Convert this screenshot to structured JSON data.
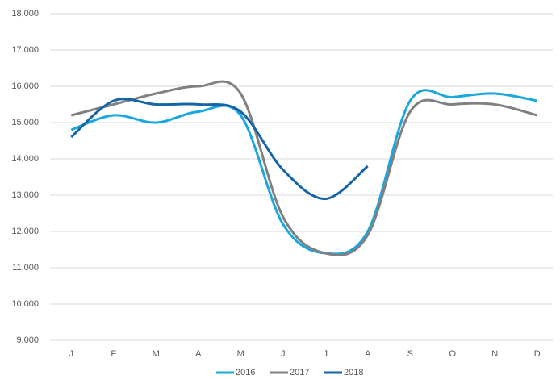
{
  "chart_data": {
    "type": "line",
    "categories": [
      "J",
      "F",
      "M",
      "A",
      "M",
      "J",
      "J",
      "A",
      "S",
      "O",
      "N",
      "D"
    ],
    "series": [
      {
        "name": "2016",
        "color": "#1aa7e0",
        "values": [
          14800,
          15200,
          15000,
          15300,
          15200,
          12200,
          11400,
          12000,
          15600,
          15700,
          15800,
          15600
        ]
      },
      {
        "name": "2017",
        "color": "#808080",
        "values": [
          15200,
          15500,
          15800,
          16000,
          15800,
          12400,
          11400,
          11900,
          15300,
          15500,
          15500,
          15200
        ]
      },
      {
        "name": "2018",
        "color": "#1565a8",
        "values": [
          14600,
          15600,
          15500,
          15500,
          15300,
          13700,
          12900,
          13800,
          null,
          null,
          null,
          null
        ]
      }
    ],
    "ylim": [
      9000,
      18000
    ],
    "yticks": [
      {
        "value": 9000,
        "label": "9,000"
      },
      {
        "value": 10000,
        "label": "10,000"
      },
      {
        "value": 11000,
        "label": "11,000"
      },
      {
        "value": 12000,
        "label": "12,000"
      },
      {
        "value": 13000,
        "label": "13,000"
      },
      {
        "value": 14000,
        "label": "14,000"
      },
      {
        "value": 15000,
        "label": "15,000"
      },
      {
        "value": 16000,
        "label": "16,000"
      },
      {
        "value": 17000,
        "label": "17,000"
      },
      {
        "value": 18000,
        "label": "18,000"
      }
    ],
    "grid": true,
    "legend": "bottom"
  }
}
